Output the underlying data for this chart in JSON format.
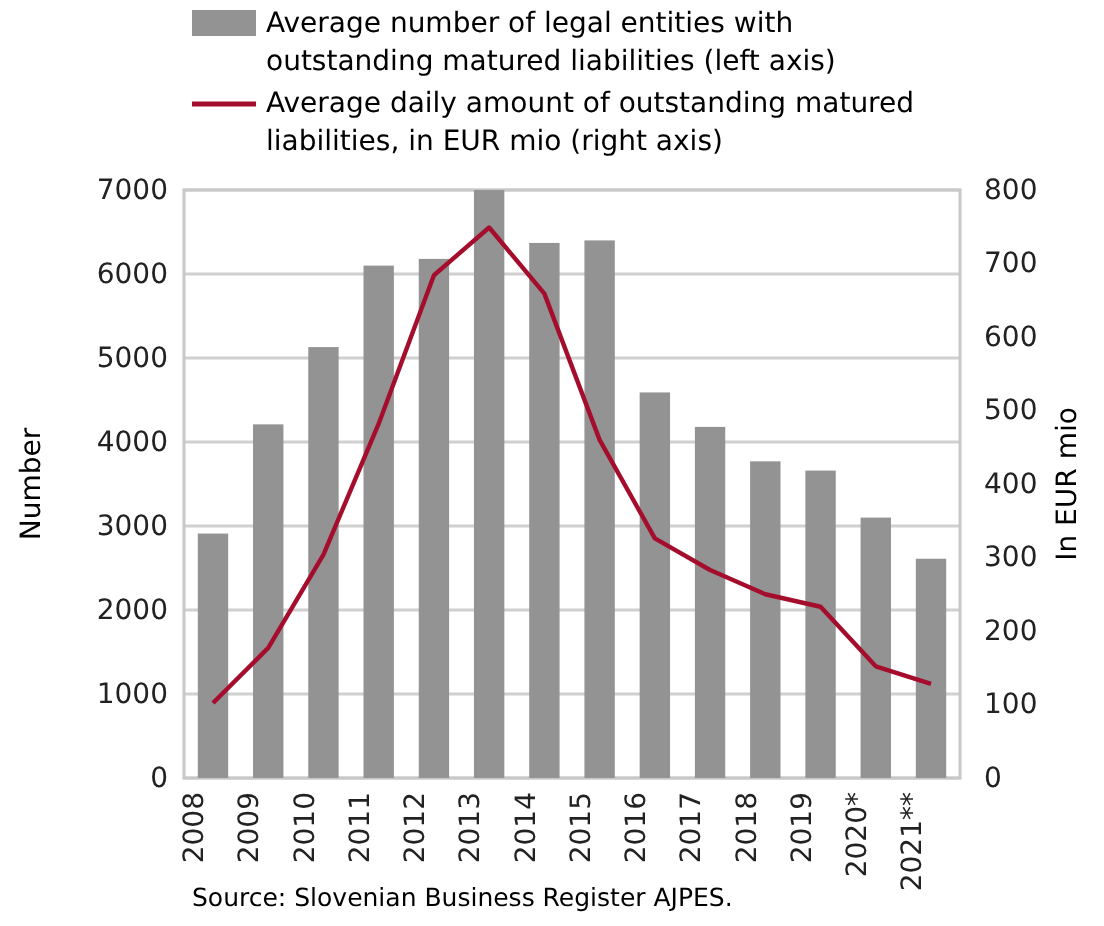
{
  "chart_data": {
    "type": "bar",
    "categories": [
      "2008",
      "2009",
      "2010",
      "2011",
      "2012",
      "2013",
      "2014",
      "2015",
      "2016",
      "2017",
      "2018",
      "2019",
      "2020*",
      "2021**"
    ],
    "series": [
      {
        "name": "Average number of legal entities with outstanding matured liabilities (left axis)",
        "color": "#939393",
        "values": [
          2910,
          4210,
          5130,
          6100,
          6180,
          7000,
          6370,
          6400,
          4590,
          4180,
          3770,
          3660,
          3100,
          2610
        ]
      },
      {
        "name": "Average daily amount of outstanding matured liabilities, in EUR mio (right axis)",
        "type": "line",
        "axis": "y2",
        "color": "#a50d2c",
        "values": [
          102,
          177,
          304,
          482,
          684,
          749,
          659,
          460,
          326,
          283,
          250,
          233,
          152,
          128
        ]
      }
    ],
    "ylabel": "Number",
    "y2label": "In EUR mio",
    "ylim": [
      0,
      7000
    ],
    "yticks": [
      0,
      1000,
      2000,
      3000,
      4000,
      5000,
      6000,
      7000
    ],
    "y2lim": [
      0,
      800
    ],
    "y2ticks": [
      0,
      100,
      200,
      300,
      400,
      500,
      600,
      700,
      800
    ],
    "grid": "y",
    "legend": "top",
    "marker": "none",
    "line_style": "solid",
    "annotations": [
      "Source: Slovenian Business Register AJPES."
    ]
  }
}
